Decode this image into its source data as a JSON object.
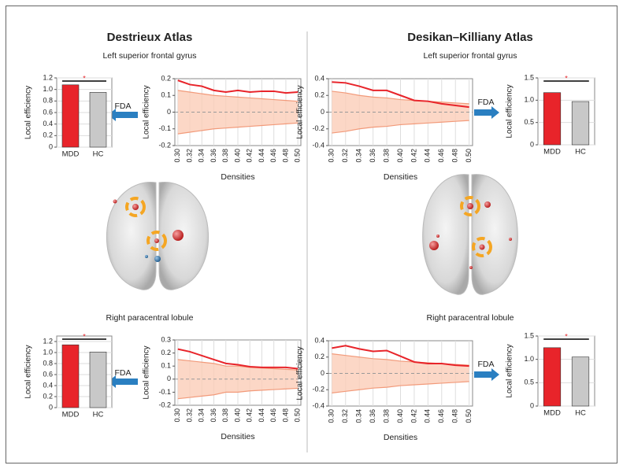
{
  "figure": {
    "panels": [
      {
        "title": "Destrieux Atlas",
        "regions": [
          "Left superior frontal gyrus",
          "Right paracentral lobule"
        ]
      },
      {
        "title": "Desikan–Killiany Atlas",
        "regions": [
          "Left superior frontal gyrus",
          "Right paracentral lobule"
        ]
      }
    ],
    "arrow_label": "FDA"
  },
  "chart_data": [
    {
      "type": "bar",
      "ylabel": "Local efficiency",
      "categories": [
        "MDD",
        "HC"
      ],
      "values": [
        1.08,
        0.95
      ],
      "colors": [
        "#e8242a",
        "#c8c8c8"
      ],
      "annotation": "*",
      "ylim": [
        0,
        1.2
      ],
      "yticks": [
        0,
        0.2,
        0.4,
        0.6,
        0.8,
        {
          "value": 1,
          "label": "1.0"
        },
        1.2
      ],
      "grid": true
    },
    {
      "type": "line",
      "xlabel": "Densities",
      "ylabel": "Local efficiency",
      "x": [
        0.3,
        0.32,
        0.34,
        0.36,
        0.38,
        0.4,
        0.42,
        0.44,
        0.46,
        0.48,
        0.5
      ],
      "series": [
        {
          "color": "#e8242a",
          "values": [
            0.19,
            0.165,
            0.155,
            0.13,
            0.12,
            0.13,
            0.12,
            0.125,
            0.125,
            0.115,
            0.12
          ]
        }
      ],
      "band": {
        "color": "#fbcdb8",
        "upper": [
          0.13,
          0.12,
          0.11,
          0.1,
          0.095,
          0.09,
          0.085,
          0.08,
          0.075,
          0.07,
          0.065
        ],
        "lower": [
          -0.13,
          -0.12,
          -0.11,
          -0.1,
          -0.095,
          -0.09,
          -0.085,
          -0.08,
          -0.075,
          -0.07,
          -0.065
        ]
      },
      "reference_line": 0,
      "xlim": [
        0.295,
        0.505
      ],
      "xticks": [
        {
          "value": 0.3,
          "label": "0.30"
        },
        0.32,
        0.34,
        0.36,
        0.38,
        {
          "value": 0.4,
          "label": "0.40"
        },
        0.42,
        0.44,
        0.46,
        0.48,
        {
          "value": 0.5,
          "label": "0.50"
        }
      ],
      "ylim": [
        -0.2,
        0.2
      ],
      "yticks": [
        -0.2,
        -0.1,
        0,
        0.1,
        0.2
      ],
      "grid": true
    },
    {
      "type": "bar",
      "ylabel": "Local efficiency",
      "categories": [
        "MDD",
        "HC"
      ],
      "values": [
        1.14,
        1.01
      ],
      "colors": [
        "#e8242a",
        "#c8c8c8"
      ],
      "annotation": "*",
      "ylim": [
        0,
        1.3
      ],
      "yticks": [
        0,
        0.2,
        0.4,
        0.6,
        0.8,
        {
          "value": 1,
          "label": "1.0"
        },
        1.2
      ],
      "grid": true
    },
    {
      "type": "line",
      "xlabel": "Densities",
      "ylabel": "Local efficiency",
      "x": [
        0.3,
        0.32,
        0.34,
        0.36,
        0.38,
        0.4,
        0.42,
        0.44,
        0.46,
        0.48,
        0.5
      ],
      "series": [
        {
          "color": "#e8242a",
          "values": [
            0.23,
            0.21,
            0.18,
            0.15,
            0.12,
            0.11,
            0.095,
            0.09,
            0.09,
            0.09,
            0.08
          ]
        }
      ],
      "band": {
        "color": "#fbcdb8",
        "upper": [
          0.15,
          0.14,
          0.13,
          0.12,
          0.1,
          0.1,
          0.09,
          0.085,
          0.08,
          0.075,
          0.07
        ],
        "lower": [
          -0.15,
          -0.14,
          -0.13,
          -0.12,
          -0.1,
          -0.1,
          -0.09,
          -0.085,
          -0.08,
          -0.075,
          -0.07
        ]
      },
      "reference_line": 0,
      "xlim": [
        0.295,
        0.505
      ],
      "xticks": [
        {
          "value": 0.3,
          "label": "0.30"
        },
        0.32,
        0.34,
        0.36,
        0.38,
        {
          "value": 0.4,
          "label": "0.40"
        },
        0.42,
        0.44,
        0.46,
        0.48,
        {
          "value": 0.5,
          "label": "0.50"
        }
      ],
      "ylim": [
        -0.2,
        0.3
      ],
      "yticks": [
        -0.2,
        -0.1,
        0,
        0.1,
        0.2,
        0.3
      ],
      "grid": true
    },
    {
      "type": "line",
      "xlabel": "Densities",
      "ylabel": "Local efficiency",
      "x": [
        0.3,
        0.32,
        0.34,
        0.36,
        0.38,
        0.4,
        0.42,
        0.44,
        0.46,
        0.48,
        0.5
      ],
      "series": [
        {
          "color": "#e8242a",
          "values": [
            0.36,
            0.35,
            0.31,
            0.26,
            0.26,
            0.2,
            0.14,
            0.13,
            0.1,
            0.08,
            0.06
          ]
        }
      ],
      "band": {
        "color": "#fbcdb8",
        "upper": [
          0.25,
          0.23,
          0.2,
          0.18,
          0.17,
          0.15,
          0.14,
          0.13,
          0.12,
          0.11,
          0.1
        ],
        "lower": [
          -0.25,
          -0.23,
          -0.2,
          -0.18,
          -0.17,
          -0.15,
          -0.14,
          -0.13,
          -0.12,
          -0.11,
          -0.1
        ]
      },
      "reference_line": 0,
      "xlim": [
        0.295,
        0.505
      ],
      "xticks": [
        {
          "value": 0.3,
          "label": "0.30"
        },
        0.32,
        0.34,
        0.36,
        0.38,
        {
          "value": 0.4,
          "label": "0.40"
        },
        0.42,
        0.44,
        0.46,
        0.48,
        {
          "value": 0.5,
          "label": "0.50"
        }
      ],
      "ylim": [
        -0.4,
        0.4
      ],
      "yticks": [
        -0.4,
        -0.2,
        0,
        0.2,
        0.4
      ],
      "grid": true
    },
    {
      "type": "bar",
      "ylabel": "Local efficiency",
      "categories": [
        "MDD",
        "HC"
      ],
      "values": [
        1.17,
        0.97
      ],
      "colors": [
        "#e8242a",
        "#c8c8c8"
      ],
      "annotation": "*",
      "ylim": [
        0,
        1.5
      ],
      "yticks": [
        0,
        0.5,
        {
          "value": 1,
          "label": "1.0"
        },
        1.5
      ],
      "grid": true
    },
    {
      "type": "line",
      "xlabel": "Densities",
      "ylabel": "Local efficiency",
      "x": [
        0.3,
        0.32,
        0.34,
        0.36,
        0.38,
        0.4,
        0.42,
        0.44,
        0.46,
        0.48,
        0.5
      ],
      "series": [
        {
          "color": "#e8242a",
          "values": [
            0.31,
            0.34,
            0.3,
            0.27,
            0.28,
            0.21,
            0.14,
            0.12,
            0.12,
            0.1,
            0.09
          ]
        }
      ],
      "band": {
        "color": "#fbcdb8",
        "upper": [
          0.24,
          0.22,
          0.2,
          0.18,
          0.17,
          0.15,
          0.14,
          0.13,
          0.12,
          0.11,
          0.1
        ],
        "lower": [
          -0.24,
          -0.22,
          -0.2,
          -0.18,
          -0.17,
          -0.15,
          -0.14,
          -0.13,
          -0.12,
          -0.11,
          -0.1
        ]
      },
      "reference_line": 0,
      "xlim": [
        0.295,
        0.505
      ],
      "xticks": [
        {
          "value": 0.3,
          "label": "0.30"
        },
        0.32,
        0.34,
        0.36,
        0.38,
        {
          "value": 0.4,
          "label": "0.40"
        },
        0.42,
        0.44,
        0.46,
        0.48,
        {
          "value": 0.5,
          "label": "0.50"
        }
      ],
      "ylim": [
        -0.4,
        0.4
      ],
      "yticks": [
        -0.4,
        -0.2,
        0,
        0.2,
        0.4
      ],
      "grid": true
    },
    {
      "type": "bar",
      "ylabel": "Local efficiency",
      "categories": [
        "MDD",
        "HC"
      ],
      "values": [
        1.25,
        1.05
      ],
      "colors": [
        "#e8242a",
        "#c8c8c8"
      ],
      "annotation": "*",
      "ylim": [
        0,
        1.5
      ],
      "yticks": [
        0,
        0.5,
        {
          "value": 1,
          "label": "1.0"
        },
        1.5
      ],
      "grid": true
    }
  ]
}
